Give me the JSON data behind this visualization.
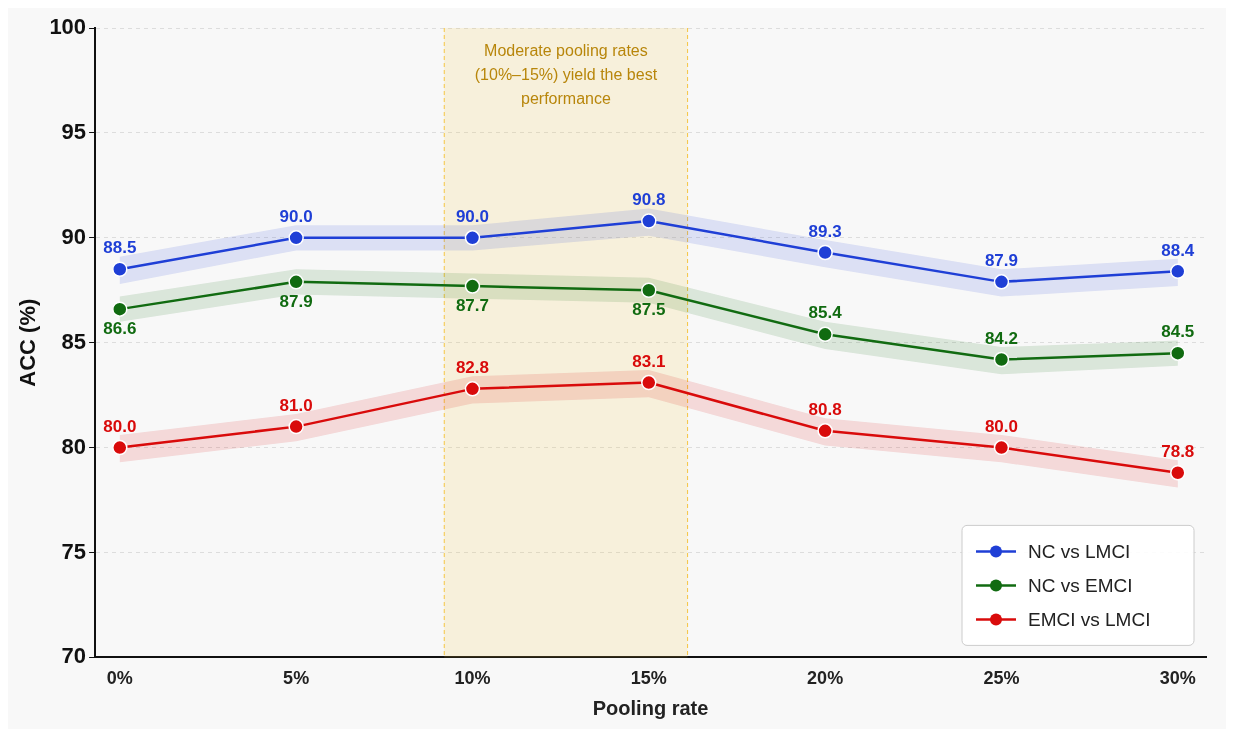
{
  "chart_data": {
    "type": "line",
    "xlabel": "Pooling rate",
    "ylabel": "ACC (%)",
    "x": [
      0,
      5,
      10,
      15,
      20,
      25,
      30
    ],
    "xlim": [
      -0.7,
      30.8
    ],
    "xticks": [
      {
        "value": 0,
        "label": "0%"
      },
      {
        "value": 5,
        "label": "5%"
      },
      {
        "value": 10,
        "label": "10%"
      },
      {
        "value": 15,
        "label": "15%"
      },
      {
        "value": 20,
        "label": "20%"
      },
      {
        "value": 25,
        "label": "25%"
      },
      {
        "value": 30,
        "label": "30%"
      }
    ],
    "ylim": [
      70,
      100
    ],
    "yticks": [
      70,
      75,
      80,
      85,
      90,
      95,
      100
    ],
    "series": [
      {
        "name": "NC vs LMCI",
        "color": "#1f3fd6",
        "values": [
          88.5,
          90.0,
          90.0,
          90.8,
          89.3,
          87.9,
          88.4
        ],
        "value_labels": [
          "88.5",
          "90.0",
          "90.0",
          "90.8",
          "89.3",
          "87.9",
          "88.4"
        ],
        "lower": [
          87.8,
          89.4,
          89.4,
          90.1,
          88.6,
          87.2,
          87.7
        ],
        "upper": [
          89.1,
          90.6,
          90.6,
          91.4,
          89.9,
          88.5,
          89.0
        ]
      },
      {
        "name": "NC vs EMCI",
        "color": "#116b11",
        "values": [
          86.6,
          87.9,
          87.7,
          87.5,
          85.4,
          84.2,
          84.5
        ],
        "value_labels": [
          "86.6",
          "87.9",
          "87.7",
          "87.5",
          "85.4",
          "84.2",
          "84.5"
        ],
        "lower": [
          86.0,
          87.3,
          87.1,
          86.9,
          84.7,
          83.5,
          83.9
        ],
        "upper": [
          87.2,
          88.5,
          88.3,
          88.1,
          86.0,
          84.8,
          85.1
        ]
      },
      {
        "name": "EMCI vs LMCI",
        "color": "#d90b0b",
        "values": [
          80.0,
          81.0,
          82.8,
          83.1,
          80.8,
          80.0,
          78.8
        ],
        "value_labels": [
          "80.0",
          "81.0",
          "82.8",
          "83.1",
          "80.8",
          "80.0",
          "78.8"
        ],
        "lower": [
          79.3,
          80.3,
          82.1,
          82.4,
          80.1,
          79.3,
          78.1
        ],
        "upper": [
          80.6,
          81.6,
          83.4,
          83.7,
          81.4,
          80.6,
          79.4
        ]
      }
    ],
    "bands": [
      {
        "axis": "x",
        "from": 9.2,
        "to": 16.1,
        "label": "Moderate pooling rates\n(10%–15%) yield the best\nperformance",
        "color": "#f5c542"
      }
    ],
    "ref_lines": [
      {
        "axis": "x",
        "value": 9.2,
        "color": "#f5c542",
        "line_style": "dashed"
      },
      {
        "axis": "x",
        "value": 16.1,
        "color": "#f5c542",
        "line_style": "dashed"
      }
    ],
    "grid": "y",
    "legend": "bottom right",
    "marker": "circle",
    "line_style": "solid"
  }
}
